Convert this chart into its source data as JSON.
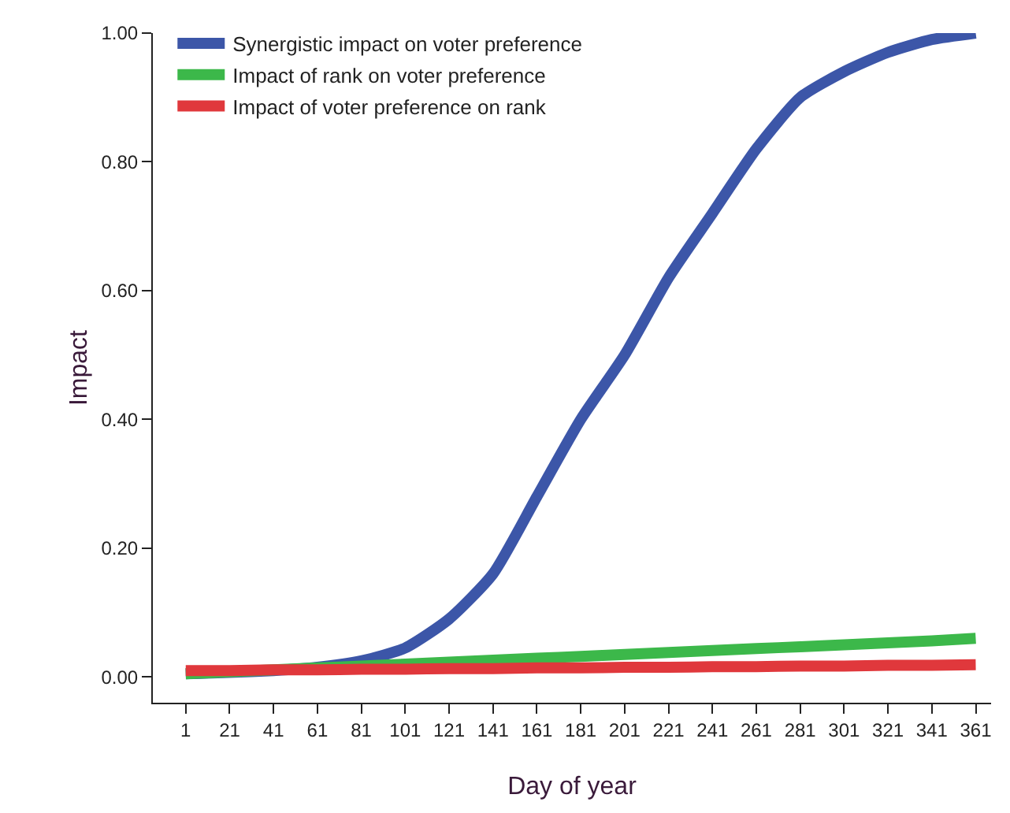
{
  "chart_data": {
    "type": "line",
    "xlabel": "Day of year",
    "ylabel": "Impact",
    "x": [
      1,
      21,
      41,
      61,
      81,
      101,
      121,
      141,
      161,
      181,
      201,
      221,
      241,
      261,
      281,
      301,
      321,
      341,
      361
    ],
    "series": [
      {
        "name": "Synergistic impact on voter preference",
        "color": "#3c56a8",
        "values": [
          0.005,
          0.007,
          0.01,
          0.015,
          0.025,
          0.045,
          0.09,
          0.16,
          0.28,
          0.4,
          0.5,
          0.62,
          0.72,
          0.82,
          0.9,
          0.94,
          0.97,
          0.99,
          1.0
        ]
      },
      {
        "name": "Impact of rank on voter preference",
        "color": "#3cb84a",
        "values": [
          0.005,
          0.008,
          0.011,
          0.014,
          0.017,
          0.02,
          0.023,
          0.026,
          0.029,
          0.032,
          0.035,
          0.038,
          0.041,
          0.044,
          0.047,
          0.05,
          0.053,
          0.056,
          0.06
        ]
      },
      {
        "name": "Impact of voter preference on rank",
        "color": "#e0383c",
        "values": [
          0.01,
          0.01,
          0.011,
          0.011,
          0.012,
          0.012,
          0.013,
          0.013,
          0.014,
          0.014,
          0.015,
          0.015,
          0.016,
          0.016,
          0.017,
          0.017,
          0.018,
          0.018,
          0.019
        ]
      }
    ],
    "xlim": [
      -14,
      368
    ],
    "xticks": [
      1,
      21,
      41,
      61,
      81,
      101,
      121,
      141,
      161,
      181,
      201,
      221,
      241,
      261,
      281,
      301,
      321,
      341,
      361
    ],
    "ylim": [
      -0.04,
      1.0
    ],
    "yticks": [
      {
        "value": 0,
        "label": "0.00"
      },
      {
        "value": 0.2,
        "label": "0.20"
      },
      {
        "value": 0.4,
        "label": "0.40"
      },
      {
        "value": 0.6,
        "label": "0.60"
      },
      {
        "value": 0.8,
        "label": "0.80"
      },
      {
        "value": 1.0,
        "label": "1.00"
      }
    ],
    "grid": false,
    "legend": "top left",
    "marker": "none",
    "line_style": "solid"
  }
}
